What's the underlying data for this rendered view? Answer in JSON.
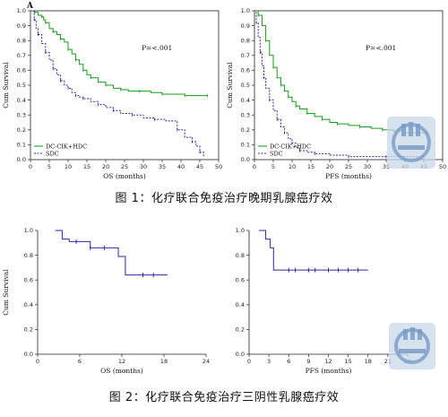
{
  "captions": {
    "fig1": "图 1：化疗联合免疫治疗晚期乳腺癌疗效",
    "fig2": "图 2：化疗联合免疫治疗三阴性乳腺癌疗效"
  },
  "panel_letter": "A",
  "chart_data": [
    {
      "id": "os_all",
      "type": "line",
      "step": true,
      "xlabel": "OS (months)",
      "ylabel": "Cum Survival",
      "xlim": [
        0,
        50
      ],
      "ylim": [
        0,
        1.0
      ],
      "xticks": [
        0,
        5,
        10,
        15,
        20,
        25,
        30,
        35,
        40,
        45,
        50
      ],
      "yticks": [
        0.0,
        0.1,
        0.2,
        0.3,
        0.4,
        0.5,
        0.6,
        0.7,
        0.8,
        0.9,
        1.0
      ],
      "ytick_labels": [
        "0.0",
        "0.1",
        "0.2",
        "0.3",
        "0.4",
        "0.5",
        "0.6",
        "0.7",
        "0.8",
        "0.9",
        "1.0"
      ],
      "annotation": "P=<.001",
      "legend": "bottom-left",
      "series": [
        {
          "name": "DC-CIK+HDC",
          "color": "#1a9a1a",
          "style": "solid",
          "x": [
            0,
            1,
            2,
            3,
            3.5,
            4,
            5,
            6,
            7,
            8,
            9,
            10,
            11,
            12,
            13,
            14,
            15,
            16,
            18,
            20,
            22,
            24,
            26,
            29,
            32,
            35,
            38,
            41,
            44,
            47
          ],
          "y": [
            1.0,
            0.99,
            0.97,
            0.96,
            0.94,
            0.92,
            0.88,
            0.86,
            0.84,
            0.81,
            0.79,
            0.74,
            0.71,
            0.67,
            0.64,
            0.6,
            0.57,
            0.55,
            0.52,
            0.5,
            0.48,
            0.47,
            0.46,
            0.46,
            0.45,
            0.44,
            0.44,
            0.43,
            0.43,
            0.43
          ]
        },
        {
          "name": "SDC",
          "color": "#2a2aa0",
          "style": "dashed",
          "x": [
            0,
            1,
            1.5,
            2,
            3,
            4,
            5,
            6,
            7,
            8,
            9,
            10,
            11,
            12,
            13,
            14,
            16,
            18,
            20,
            22,
            24,
            27,
            30,
            33,
            36,
            39,
            41,
            43,
            44,
            45,
            46
          ],
          "y": [
            1.0,
            0.94,
            0.88,
            0.84,
            0.78,
            0.72,
            0.67,
            0.61,
            0.57,
            0.53,
            0.5,
            0.48,
            0.45,
            0.43,
            0.42,
            0.41,
            0.39,
            0.37,
            0.35,
            0.33,
            0.31,
            0.3,
            0.28,
            0.27,
            0.26,
            0.2,
            0.15,
            0.12,
            0.09,
            0.05,
            0.02
          ]
        }
      ]
    },
    {
      "id": "pfs_all",
      "type": "line",
      "step": true,
      "xlabel": "PFS (months)",
      "ylabel": "Cum Survival",
      "xlim": [
        0,
        50
      ],
      "ylim": [
        0,
        1.0
      ],
      "xticks": [
        0,
        5,
        10,
        15,
        20,
        25,
        30,
        35,
        40,
        45,
        50
      ],
      "yticks": [
        0.0,
        0.1,
        0.2,
        0.3,
        0.4,
        0.5,
        0.6,
        0.7,
        0.8,
        0.9,
        1.0
      ],
      "ytick_labels": [
        "0.0",
        "0.1",
        "0.2",
        "0.3",
        "0.4",
        "0.5",
        "0.6",
        "0.7",
        "0.8",
        "0.9",
        "1.0"
      ],
      "annotation": "P=<.001",
      "legend": "bottom-left",
      "series": [
        {
          "name": "DC-CIK+HDC",
          "color": "#1a9a1a",
          "style": "solid",
          "x": [
            0,
            1,
            2,
            3,
            4,
            5,
            6,
            7,
            8,
            9,
            10,
            11,
            12,
            14,
            16,
            18,
            20,
            22,
            25,
            28,
            31,
            34,
            37,
            40,
            43,
            46
          ],
          "y": [
            1.0,
            0.97,
            0.9,
            0.8,
            0.7,
            0.62,
            0.55,
            0.5,
            0.46,
            0.42,
            0.39,
            0.36,
            0.34,
            0.31,
            0.29,
            0.27,
            0.25,
            0.24,
            0.23,
            0.22,
            0.21,
            0.2,
            0.19,
            0.18,
            0.18,
            0.18
          ]
        },
        {
          "name": "SDC",
          "color": "#2a2aa0",
          "style": "dashed",
          "x": [
            0,
            0.5,
            1,
            1.5,
            2,
            2.5,
            3,
            4,
            5,
            6,
            7,
            8,
            9,
            10,
            11,
            12,
            14,
            16,
            20,
            25,
            30,
            35,
            40,
            45
          ],
          "y": [
            1.0,
            0.92,
            0.82,
            0.72,
            0.63,
            0.55,
            0.48,
            0.4,
            0.33,
            0.27,
            0.22,
            0.18,
            0.14,
            0.11,
            0.08,
            0.06,
            0.05,
            0.04,
            0.03,
            0.02,
            0.02,
            0.02,
            0.02,
            0.02
          ]
        }
      ]
    },
    {
      "id": "os_tnbc",
      "type": "line",
      "step": true,
      "xlabel": "OS (months)",
      "ylabel": "Cum Survival",
      "xlim": [
        0,
        24
      ],
      "ylim": [
        0,
        1.0
      ],
      "xticks": [
        0,
        6,
        12,
        18,
        24
      ],
      "yticks": [
        0.0,
        0.2,
        0.4,
        0.6,
        0.8,
        1.0
      ],
      "ytick_labels": [
        "0.0",
        "0.2",
        "0.4",
        "0.6",
        "0.8",
        "1.0"
      ],
      "series": [
        {
          "name": "",
          "color": "#2a2aa0",
          "style": "solid",
          "x": [
            2.5,
            3.5,
            4.5,
            5.5,
            6.5,
            7.5,
            8.5,
            9.5,
            10.5,
            11.5,
            12.5,
            13.5,
            15,
            16.5,
            18.5
          ],
          "y": [
            1.0,
            0.93,
            0.91,
            0.91,
            0.91,
            0.86,
            0.86,
            0.86,
            0.86,
            0.79,
            0.64,
            0.64,
            0.64,
            0.64,
            0.64
          ],
          "censor_x": [
            5.5,
            7.5,
            9.5,
            15,
            16.5
          ]
        }
      ]
    },
    {
      "id": "pfs_tnbc",
      "type": "line",
      "step": true,
      "xlabel": "PFS (months)",
      "ylabel": "",
      "xlim": [
        0,
        24
      ],
      "ylim": [
        0,
        1.0
      ],
      "xticks": [
        0,
        3,
        6,
        9,
        12,
        15,
        18,
        21,
        24
      ],
      "yticks": [
        0.0,
        0.2,
        0.4,
        0.6,
        0.8,
        1.0
      ],
      "ytick_labels": [
        "0.0",
        "0.2",
        "0.4",
        "0.6",
        "0.8",
        "1.0"
      ],
      "series": [
        {
          "name": "",
          "color": "#2a2aa0",
          "style": "solid",
          "x": [
            1.5,
            2.5,
            3.2,
            3.7,
            4.5,
            6,
            7,
            9,
            10,
            12,
            13.5,
            15,
            16.5,
            18
          ],
          "y": [
            1.0,
            0.93,
            0.86,
            0.68,
            0.68,
            0.68,
            0.68,
            0.68,
            0.68,
            0.68,
            0.68,
            0.68,
            0.68,
            0.68
          ],
          "censor_x": [
            6,
            7,
            9,
            10,
            12,
            13.5,
            15,
            16.5
          ]
        }
      ]
    }
  ]
}
